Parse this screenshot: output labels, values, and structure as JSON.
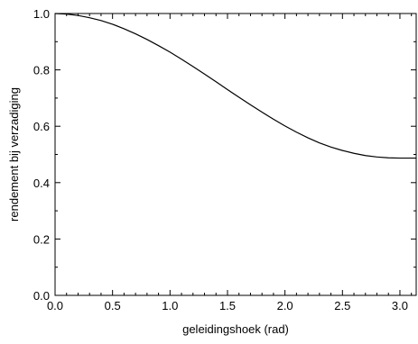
{
  "chart_data": {
    "type": "line",
    "xlabel": "geleidingshoek (rad)",
    "ylabel": "rendement bij verzadiging",
    "xlim": [
      0,
      3.1416
    ],
    "ylim": [
      0,
      1
    ],
    "x_ticks": [
      {
        "value": 0.0,
        "label": "0.0"
      },
      {
        "value": 0.5,
        "label": "0.5"
      },
      {
        "value": 1.0,
        "label": "1.0"
      },
      {
        "value": 1.5,
        "label": "1.5"
      },
      {
        "value": 2.0,
        "label": "2.0"
      },
      {
        "value": 2.5,
        "label": "2.5"
      },
      {
        "value": 3.0,
        "label": "3.0"
      }
    ],
    "y_ticks": [
      {
        "value": 0.0,
        "label": "0.0"
      },
      {
        "value": 0.2,
        "label": "0.2"
      },
      {
        "value": 0.4,
        "label": "0.4"
      },
      {
        "value": 0.6,
        "label": "0.6"
      },
      {
        "value": 0.8,
        "label": "0.8"
      },
      {
        "value": 1.0,
        "label": "1.0"
      }
    ],
    "grid": false,
    "series": [
      {
        "x": [
          0.0,
          0.1,
          0.2,
          0.3,
          0.4,
          0.5,
          0.6,
          0.7,
          0.8,
          0.9,
          1.0,
          1.1,
          1.2,
          1.3,
          1.4,
          1.5,
          1.6,
          1.7,
          1.8,
          1.9,
          2.0,
          2.1,
          2.2,
          2.3,
          2.4,
          2.5,
          2.6,
          2.7,
          2.8,
          2.9,
          3.0,
          3.1,
          3.1416
        ],
        "values": [
          1.0,
          0.998,
          0.993,
          0.985,
          0.975,
          0.962,
          0.946,
          0.928,
          0.908,
          0.886,
          0.863,
          0.838,
          0.812,
          0.785,
          0.758,
          0.73,
          0.703,
          0.676,
          0.65,
          0.625,
          0.601,
          0.579,
          0.559,
          0.541,
          0.526,
          0.514,
          0.504,
          0.496,
          0.491,
          0.488,
          0.487,
          0.487,
          0.487
        ]
      }
    ]
  }
}
